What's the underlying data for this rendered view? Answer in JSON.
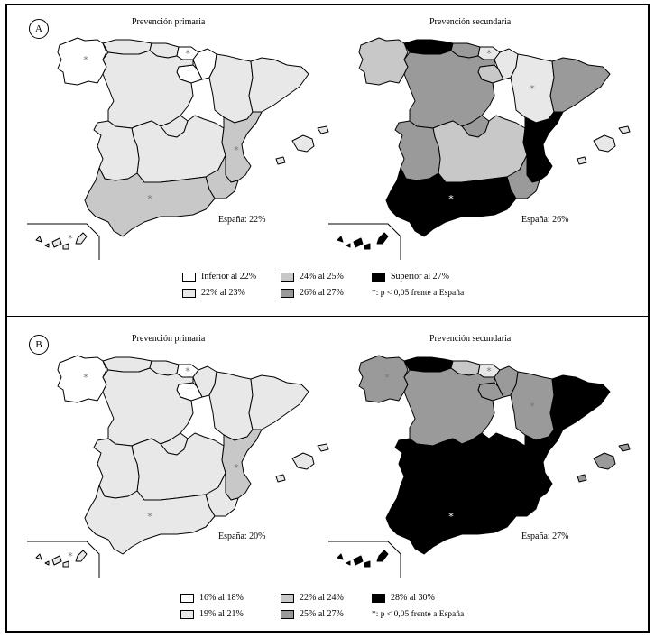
{
  "panels": [
    {
      "letter": "A",
      "national_marker": "*: p < 0,05 frente a España",
      "maps": [
        {
          "title": "Prevención primaria",
          "total": "España: 22%",
          "regions": {
            "galicia": {
              "class": 0,
              "sig": true
            },
            "asturias": {
              "class": 1,
              "sig": false
            },
            "cantabria": {
              "class": 1,
              "sig": false
            },
            "pais_vasco": {
              "class": 0,
              "sig": true
            },
            "navarra": {
              "class": 0,
              "sig": false
            },
            "la_rioja": {
              "class": 0,
              "sig": false
            },
            "aragon": {
              "class": 1,
              "sig": false
            },
            "cataluna": {
              "class": 1,
              "sig": false
            },
            "castilla_leon": {
              "class": 1,
              "sig": false
            },
            "madrid": {
              "class": 1,
              "sig": false
            },
            "castilla_la_mancha": {
              "class": 1,
              "sig": false
            },
            "extremadura": {
              "class": 1,
              "sig": false
            },
            "valencia": {
              "class": 2,
              "sig": true
            },
            "murcia": {
              "class": 2,
              "sig": false
            },
            "andalucia": {
              "class": 2,
              "sig": true
            },
            "baleares": {
              "class": 1,
              "sig": false
            },
            "canarias": {
              "class": 1,
              "sig": true
            }
          }
        },
        {
          "title": "Prevención secundaria",
          "total": "España: 26%",
          "regions": {
            "galicia": {
              "class": 2,
              "sig": false
            },
            "asturias": {
              "class": 4,
              "sig": false
            },
            "cantabria": {
              "class": 3,
              "sig": false
            },
            "pais_vasco": {
              "class": 1,
              "sig": true
            },
            "navarra": {
              "class": 1,
              "sig": false
            },
            "la_rioja": {
              "class": 2,
              "sig": false
            },
            "aragon": {
              "class": 1,
              "sig": true
            },
            "cataluna": {
              "class": 3,
              "sig": false
            },
            "castilla_leon": {
              "class": 3,
              "sig": false
            },
            "madrid": {
              "class": 3,
              "sig": false
            },
            "castilla_la_mancha": {
              "class": 2,
              "sig": false
            },
            "extremadura": {
              "class": 3,
              "sig": false
            },
            "valencia": {
              "class": 4,
              "sig": false
            },
            "murcia": {
              "class": 3,
              "sig": false
            },
            "andalucia": {
              "class": 4,
              "sig": true
            },
            "baleares": {
              "class": 1,
              "sig": false
            },
            "canarias": {
              "class": 4,
              "sig": true
            }
          }
        }
      ],
      "legend": [
        {
          "label": "Inferior al 22%",
          "color": "#ffffff"
        },
        {
          "label": "22% al 23%",
          "color": "#e8e8e8"
        },
        {
          "label": "24% al 25%",
          "color": "#c8c8c8"
        },
        {
          "label": "26% al 27%",
          "color": "#9a9a9a"
        },
        {
          "label": "Superior al 27%",
          "color": "#000000"
        }
      ]
    },
    {
      "letter": "B",
      "national_marker": "*: p < 0,05 frente a España",
      "maps": [
        {
          "title": "Prevención primaria",
          "total": "España: 20%",
          "regions": {
            "galicia": {
              "class": 0,
              "sig": true
            },
            "asturias": {
              "class": 1,
              "sig": false
            },
            "cantabria": {
              "class": 1,
              "sig": false
            },
            "pais_vasco": {
              "class": 0,
              "sig": true
            },
            "navarra": {
              "class": 1,
              "sig": false
            },
            "la_rioja": {
              "class": 0,
              "sig": false
            },
            "aragon": {
              "class": 1,
              "sig": false
            },
            "cataluna": {
              "class": 1,
              "sig": false
            },
            "castilla_leon": {
              "class": 1,
              "sig": false
            },
            "madrid": {
              "class": 1,
              "sig": false
            },
            "castilla_la_mancha": {
              "class": 1,
              "sig": false
            },
            "extremadura": {
              "class": 1,
              "sig": false
            },
            "valencia": {
              "class": 2,
              "sig": true
            },
            "murcia": {
              "class": 1,
              "sig": false
            },
            "andalucia": {
              "class": 1,
              "sig": true
            },
            "baleares": {
              "class": 1,
              "sig": false
            },
            "canarias": {
              "class": 1,
              "sig": true
            }
          }
        },
        {
          "title": "Prevención secundaria",
          "total": "España: 27%",
          "regions": {
            "galicia": {
              "class": 3,
              "sig": true
            },
            "asturias": {
              "class": 4,
              "sig": false
            },
            "cantabria": {
              "class": 2,
              "sig": false
            },
            "pais_vasco": {
              "class": 1,
              "sig": true
            },
            "navarra": {
              "class": 3,
              "sig": false
            },
            "la_rioja": {
              "class": 3,
              "sig": false
            },
            "aragon": {
              "class": 3,
              "sig": true
            },
            "cataluna": {
              "class": 4,
              "sig": false
            },
            "castilla_leon": {
              "class": 3,
              "sig": false
            },
            "madrid": {
              "class": 4,
              "sig": false
            },
            "castilla_la_mancha": {
              "class": 4,
              "sig": false
            },
            "extremadura": {
              "class": 4,
              "sig": false
            },
            "valencia": {
              "class": 4,
              "sig": false
            },
            "murcia": {
              "class": 4,
              "sig": false
            },
            "andalucia": {
              "class": 4,
              "sig": true
            },
            "baleares": {
              "class": 3,
              "sig": false
            },
            "canarias": {
              "class": 4,
              "sig": true
            }
          }
        }
      ],
      "legend": [
        {
          "label": "16% al 18%",
          "color": "#ffffff"
        },
        {
          "label": "19% al 21%",
          "color": "#e8e8e8"
        },
        {
          "label": "22% al 24%",
          "color": "#c8c8c8"
        },
        {
          "label": "25% al 27%",
          "color": "#9a9a9a"
        },
        {
          "label": "28% al 30%",
          "color": "#000000"
        }
      ]
    }
  ]
}
